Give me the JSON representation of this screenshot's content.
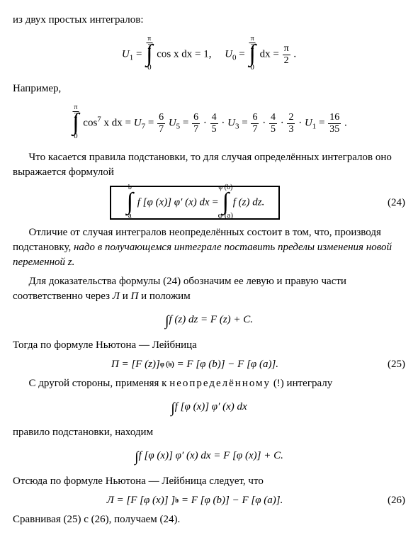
{
  "p1": "из двух простых интегралов:",
  "eq1": {
    "u1": "U",
    "u1sub": "1",
    "eq": "=",
    "int_top": "π",
    "int_top2": "2",
    "int_bot": "0",
    "fn1": "cos x dx",
    "res1": "1",
    "comma": ",",
    "u0": "U",
    "u0sub": "0",
    "fn2": "dx",
    "res2n": "π",
    "res2d": "2",
    "dot": "."
  },
  "p2": "Например,",
  "eq2": {
    "int_top": "π",
    "int_top2": "2",
    "int_bot": "0",
    "fn": "cos",
    "exp": "7",
    "xdx": " x dx",
    "u7": "U",
    "u7s": "7",
    "f1n": "6",
    "f1d": "7",
    "u5": "U",
    "u5s": "5",
    "f2n": "6",
    "f2d": "7",
    "f3n": "4",
    "f3d": "5",
    "u3": "U",
    "u3s": "3",
    "f4n": "6",
    "f4d": "7",
    "f5n": "4",
    "f5d": "5",
    "f6n": "2",
    "f6d": "3",
    "u1": "U",
    "u1s": "1",
    "resn": "16",
    "resd": "35",
    "dot": "."
  },
  "p3": "Что касается правила подстановки, то для случая определённых интегралов оно выражается формулой",
  "eq24": {
    "top_a": "b",
    "bot_a": "a",
    "lhs": "f [φ (x)] φ′ (x) dx",
    "top_b": "φ (b)",
    "bot_b": "φ (a)",
    "rhs": "f (z) dz.",
    "num": "(24)"
  },
  "p4a": "Отличие от случая интегралов неопределённых состоит в том, что, производя подстановку, ",
  "p4b": "надо в получающемся интеграле поставить пределы изменения новой переменной z.",
  "p5a": "Для доказательства формулы (24) обозначим ее левую и правую части соответственно через ",
  "p5_L": "Л",
  "p5_and": " и ",
  "p5_P": "П",
  "p5b": " и положим",
  "eq_fz": "f (z) dz = F (z) + C.",
  "p6": "Тогда по формуле Ньютона — Лейбница",
  "eq25": {
    "text": "П = [F (z)]",
    "sup": "φ (b)",
    "sub": "φ (a)",
    "tail": " = F [φ (b)] − F [φ (a)].",
    "num": "(25)"
  },
  "p7a": "С другой стороны, применяя к ",
  "p7b": "неопределённому",
  "p7c": " (!) интегралу",
  "eq_int2": "f [φ (x)] φ′ (x) dx",
  "p8": "правило подстановки, находим",
  "eq_sub": "f [φ (x)] φ′ (x) dx = F [φ (x)] + C.",
  "p9": "Отсюда по формуле Ньютона — Лейбница следует, что",
  "eq26": {
    "text": "Л = [F [φ (x)] ]",
    "sup": "b",
    "sub": "a",
    "tail": " = F [φ (b)] − F [φ (a)].",
    "num": "(26)"
  },
  "p10": "Сравнивая (25) с (26), получаем (24)."
}
